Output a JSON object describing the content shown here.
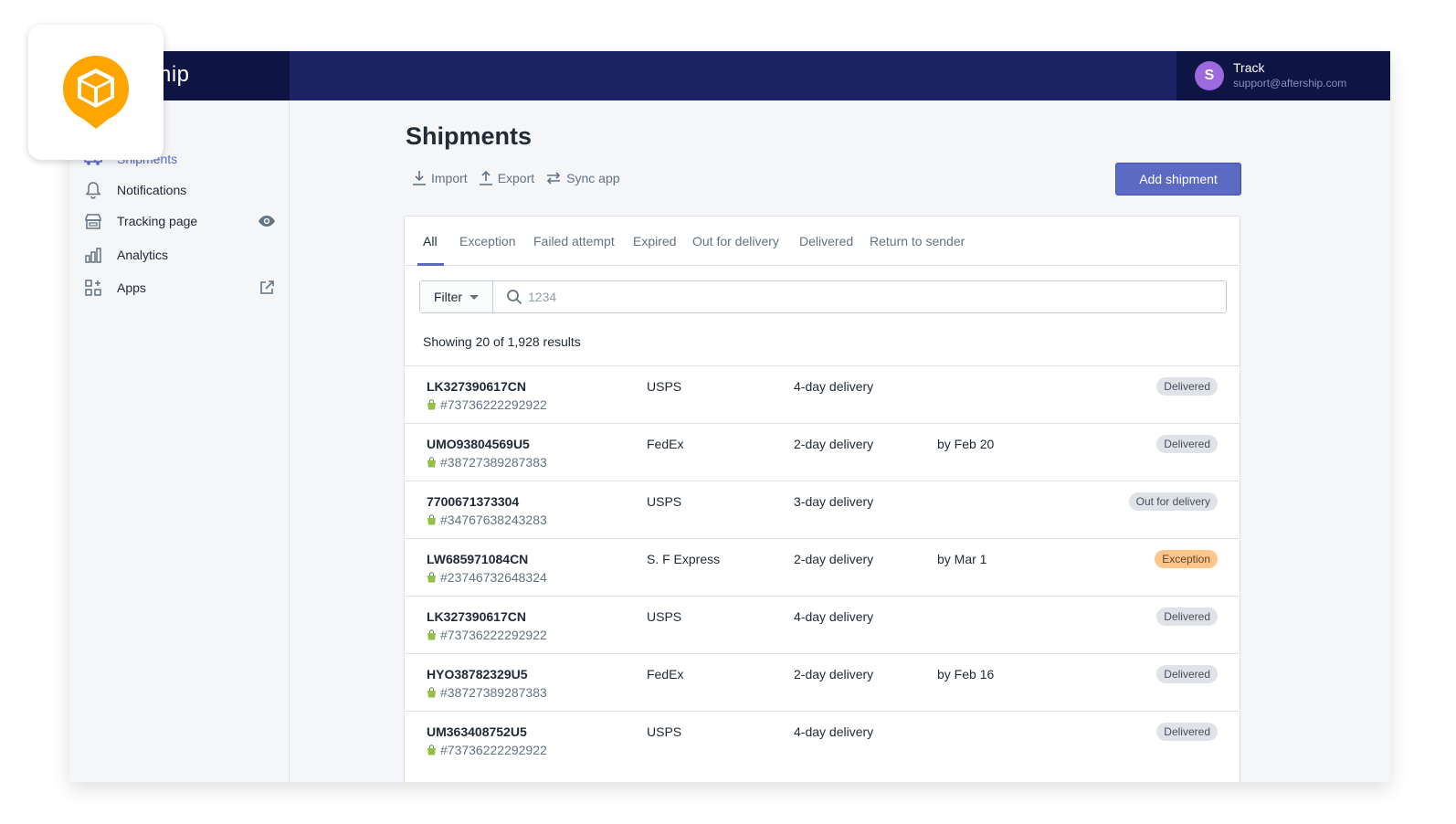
{
  "brand": {
    "text": "hip"
  },
  "user": {
    "initial": "S",
    "name": "Track",
    "email": "support@aftership.com"
  },
  "sidebar": {
    "items": [
      {
        "label": "Shipments",
        "icon": "truck-icon"
      },
      {
        "label": "Notifications",
        "icon": "bell-icon"
      },
      {
        "label": "Tracking page",
        "icon": "store-icon",
        "trailing": "eye-icon"
      },
      {
        "label": "Analytics",
        "icon": "bar-chart-icon"
      },
      {
        "label": "Apps",
        "icon": "apps-grid-icon",
        "trailing": "external-link-icon"
      }
    ]
  },
  "page": {
    "title": "Shipments"
  },
  "actions": {
    "import": "Import",
    "export": "Export",
    "sync": "Sync app",
    "add": "Add shipment"
  },
  "tabs": [
    "All",
    "Exception",
    "Failed attempt",
    "Expired",
    "Out for delivery",
    "Delivered",
    "Return to sender"
  ],
  "filter": {
    "label": "Filter",
    "search_placeholder": "1234"
  },
  "results_text": "Showing 20 of 1,928 results",
  "shipments": [
    {
      "tracking": "LK327390617CN",
      "order": "#73736222292922",
      "carrier": "USPS",
      "service": "4-day delivery",
      "eta": "",
      "status": "Delivered"
    },
    {
      "tracking": "UMO93804569U5",
      "order": "#38727389287383",
      "carrier": "FedEx",
      "service": "2-day delivery",
      "eta": "by Feb 20",
      "status": "Delivered"
    },
    {
      "tracking": "7700671373304",
      "order": "#34767638243283",
      "carrier": "USPS",
      "service": "3-day delivery",
      "eta": "",
      "status": "Out for delivery"
    },
    {
      "tracking": "LW685971084CN",
      "order": "#23746732648324",
      "carrier": "S. F Express",
      "service": "2-day delivery",
      "eta": "by Mar 1",
      "status": "Exception"
    },
    {
      "tracking": "LK327390617CN",
      "order": "#73736222292922",
      "carrier": "USPS",
      "service": "4-day delivery",
      "eta": "",
      "status": "Delivered"
    },
    {
      "tracking": "HYO38782329U5",
      "order": "#38727389287383",
      "carrier": "FedEx",
      "service": "2-day delivery",
      "eta": "by Feb 16",
      "status": "Delivered"
    },
    {
      "tracking": "UM363408752U5",
      "order": "#73736222292922",
      "carrier": "USPS",
      "service": "4-day delivery",
      "eta": "",
      "status": "Delivered"
    }
  ],
  "colors": {
    "accent": "#5c6ac4",
    "topbar": "#1d2466",
    "brand_orange": "#ffa500",
    "exception": "#ffc58b"
  }
}
